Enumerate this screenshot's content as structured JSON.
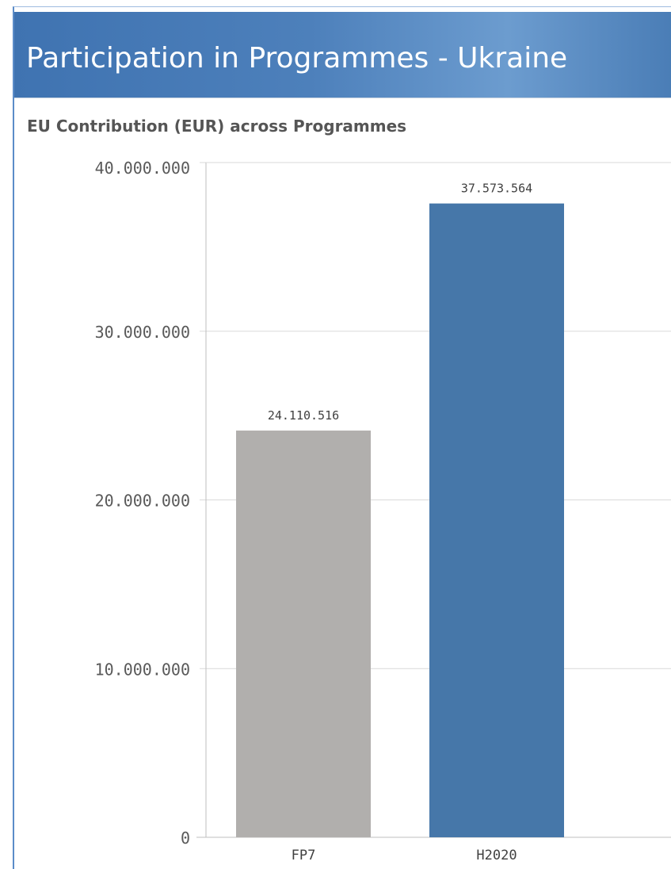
{
  "page_title": "Participation in Programmes - Ukraine",
  "chart_subtitle": "EU Contribution (EUR) across Programmes",
  "colors": {
    "banner": "#4578b5",
    "gridline": "#d9d9d9",
    "axis": "#bfbfbf"
  },
  "chart_data": {
    "type": "bar",
    "title": "EU Contribution (EUR) across Programmes",
    "categories": [
      "FP7",
      "H2020"
    ],
    "values": [
      24110516,
      37573564
    ],
    "value_labels": [
      "24.110.516",
      "37.573.564"
    ],
    "bar_colors": [
      "#b1afad",
      "#4677a9"
    ],
    "ylim": [
      0,
      40000000
    ],
    "y_ticks": [
      0,
      10000000,
      20000000,
      30000000,
      40000000
    ],
    "y_tick_labels": [
      "0",
      "10.000.000",
      "20.000.000",
      "30.000.000",
      "40.000.000"
    ],
    "grid": true,
    "xlabel": "",
    "ylabel": ""
  }
}
